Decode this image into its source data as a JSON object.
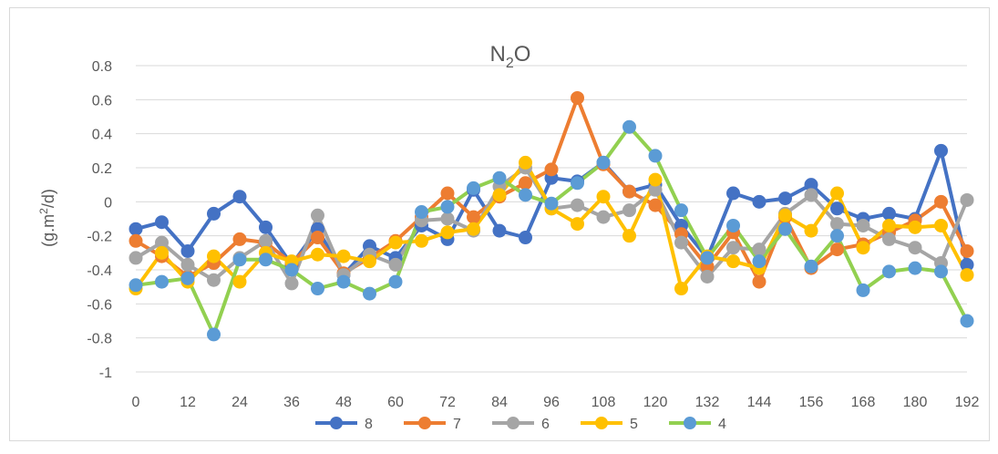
{
  "chart_data": {
    "type": "line",
    "title": {
      "main": "N",
      "sub": "2",
      "tail": "O"
    },
    "ylabel": {
      "pre": "(g.m",
      "sup": "2",
      "post": "/d)"
    },
    "ylim": [
      -1,
      0.8
    ],
    "yticks": [
      0.8,
      0.6,
      0.4,
      0.2,
      0,
      -0.2,
      -0.4,
      -0.6,
      -0.8,
      -1
    ],
    "ytick_labels": [
      "0.8",
      "0.6",
      "0.4",
      "0.2",
      "0",
      "-0.2",
      "-0.4",
      "-0.6",
      "-0.8",
      "-1"
    ],
    "xlim": [
      0,
      192
    ],
    "xticks": [
      0,
      12,
      24,
      36,
      48,
      60,
      72,
      84,
      96,
      108,
      120,
      132,
      144,
      156,
      168,
      180,
      192
    ],
    "x": [
      0,
      6,
      12,
      18,
      24,
      30,
      36,
      42,
      48,
      54,
      60,
      66,
      72,
      78,
      84,
      90,
      96,
      102,
      108,
      114,
      120,
      126,
      132,
      138,
      144,
      150,
      156,
      162,
      168,
      174,
      180,
      186,
      192
    ],
    "grid": true,
    "legend": "bottom",
    "series": [
      {
        "name": "8",
        "color": "#4472C4",
        "values": [
          -0.16,
          -0.12,
          -0.29,
          -0.07,
          0.03,
          -0.15,
          -0.37,
          -0.16,
          -0.43,
          -0.26,
          -0.33,
          -0.14,
          -0.22,
          0.07,
          -0.17,
          -0.21,
          0.14,
          0.12,
          0.23,
          0.06,
          0.1,
          -0.14,
          -0.33,
          0.05,
          0.0,
          0.02,
          0.1,
          -0.04,
          -0.1,
          -0.07,
          -0.1,
          0.3,
          -0.37
        ]
      },
      {
        "name": "7",
        "color": "#ED7D31",
        "values": [
          -0.23,
          -0.32,
          -0.44,
          -0.36,
          -0.22,
          -0.24,
          -0.36,
          -0.21,
          -0.42,
          -0.33,
          -0.23,
          -0.09,
          0.05,
          -0.09,
          0.03,
          0.11,
          0.19,
          0.61,
          0.22,
          0.06,
          -0.02,
          -0.19,
          -0.38,
          -0.18,
          -0.47,
          -0.09,
          -0.39,
          -0.28,
          -0.25,
          -0.18,
          -0.11,
          0.0,
          -0.29
        ]
      },
      {
        "name": "6",
        "color": "#A5A5A5",
        "values": [
          -0.33,
          -0.24,
          -0.37,
          -0.46,
          -0.33,
          -0.23,
          -0.48,
          -0.08,
          -0.43,
          -0.31,
          -0.37,
          -0.11,
          -0.1,
          -0.17,
          0.09,
          0.2,
          -0.04,
          -0.02,
          -0.09,
          -0.05,
          0.07,
          -0.24,
          -0.44,
          -0.27,
          -0.28,
          -0.07,
          0.04,
          -0.13,
          -0.14,
          -0.22,
          -0.27,
          -0.36,
          0.01
        ]
      },
      {
        "name": "5",
        "color": "#FFC000",
        "values": [
          -0.51,
          -0.3,
          -0.47,
          -0.32,
          -0.47,
          -0.3,
          -0.35,
          -0.31,
          -0.32,
          -0.35,
          -0.24,
          -0.23,
          -0.18,
          -0.16,
          0.04,
          0.23,
          -0.04,
          -0.13,
          0.03,
          -0.2,
          0.13,
          -0.51,
          -0.32,
          -0.35,
          -0.39,
          -0.08,
          -0.17,
          0.05,
          -0.27,
          -0.14,
          -0.15,
          -0.14,
          -0.43
        ]
      },
      {
        "name": "4",
        "color": "#92D050",
        "marker_color": "#5B9BD5",
        "values": [
          -0.49,
          -0.47,
          -0.45,
          -0.78,
          -0.34,
          -0.34,
          -0.4,
          -0.51,
          -0.47,
          -0.54,
          -0.47,
          -0.06,
          -0.03,
          0.08,
          0.14,
          0.04,
          -0.01,
          0.11,
          0.23,
          0.44,
          0.27,
          -0.05,
          -0.33,
          -0.14,
          -0.35,
          -0.16,
          -0.38,
          -0.2,
          -0.52,
          -0.41,
          -0.39,
          -0.41,
          -0.7
        ]
      }
    ]
  }
}
